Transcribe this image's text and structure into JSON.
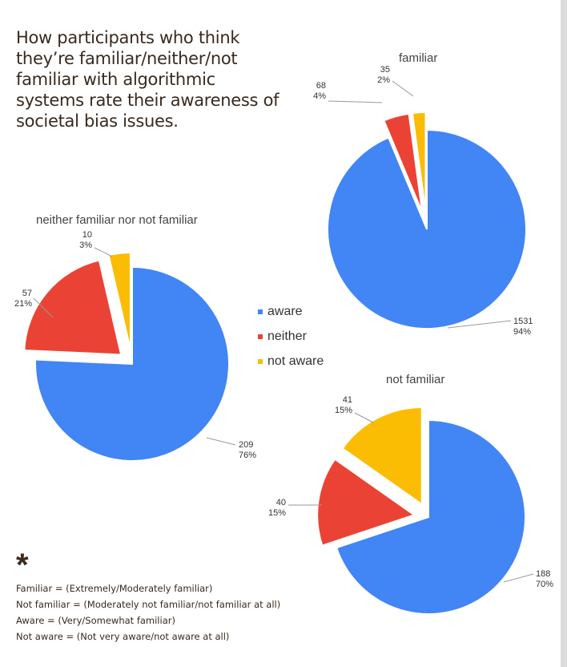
{
  "title": "How participants who think they’re familiar/neither/not familiar with algorithmic systems rate their awareness of societal bias issues.",
  "colors": {
    "aware": "#4285f4",
    "neither": "#ea4335",
    "not_aware": "#fbbc04"
  },
  "legend": [
    {
      "label": "aware",
      "color": "#4285f4"
    },
    {
      "label": "neither",
      "color": "#ea4335"
    },
    {
      "label": "not aware",
      "color": "#fbbc04"
    }
  ],
  "chart_data": [
    {
      "type": "pie",
      "title": "familiar",
      "categories": [
        "aware",
        "neither",
        "not aware"
      ],
      "values": [
        1531,
        68,
        35
      ],
      "percent_labels": [
        "94%",
        "4%",
        "2%"
      ],
      "exploded": true
    },
    {
      "type": "pie",
      "title": "neither familiar nor not familiar",
      "categories": [
        "aware",
        "neither",
        "not aware"
      ],
      "values": [
        209,
        57,
        10
      ],
      "percent_labels": [
        "76%",
        "21%",
        "3%"
      ],
      "exploded": true
    },
    {
      "type": "pie",
      "title": "not familiar",
      "categories": [
        "aware",
        "neither",
        "not aware"
      ],
      "values": [
        188,
        40,
        41
      ],
      "percent_labels": [
        "70%",
        "15%",
        "15%"
      ],
      "exploded": true
    }
  ],
  "footnote": {
    "icon": "asterisk-icon",
    "lines": [
      "Familiar = (Extremely/Moderately familiar)",
      "Not familiar = (Moderately not familiar/not familiar at all)",
      "Aware = (Very/Somewhat familiar)",
      "Not aware = (Not very aware/not aware at all)"
    ]
  }
}
